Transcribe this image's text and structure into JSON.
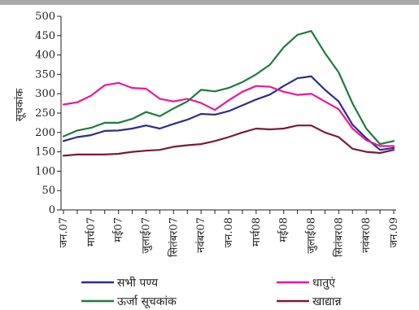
{
  "chart_data": {
    "type": "line",
    "ylabel": "सूचकांक",
    "xlabel": "",
    "ylim": [
      0,
      500
    ],
    "yticks": [
      0,
      50,
      100,
      150,
      200,
      250,
      300,
      350,
      400,
      450,
      500
    ],
    "grid": false,
    "legend_position": "bottom",
    "x_tick_labels": [
      "जन.07",
      "मार्च07",
      "मई07",
      "जुलाई07",
      "सितंबर07",
      "नवंबर07",
      "जन.08",
      "मार्च08",
      "मई08",
      "जुलाई08",
      "सितंबर08",
      "नवंबर08",
      "जन.09"
    ],
    "x_points": 25,
    "series": [
      {
        "name": "सभी पण्य",
        "color": "#2b2e8c",
        "values": [
          178,
          188,
          193,
          204,
          205,
          210,
          218,
          210,
          222,
          233,
          248,
          246,
          255,
          270,
          285,
          298,
          320,
          340,
          345,
          310,
          280,
          220,
          185,
          155,
          160
        ]
      },
      {
        "name": "धातुएं",
        "color": "#e8189a",
        "values": [
          272,
          278,
          295,
          322,
          328,
          315,
          313,
          287,
          280,
          287,
          276,
          258,
          283,
          305,
          320,
          318,
          305,
          297,
          300,
          280,
          260,
          210,
          180,
          165,
          165
        ]
      },
      {
        "name": "ऊर्जा सूचकांक",
        "color": "#1f7a3c",
        "values": [
          190,
          205,
          212,
          225,
          225,
          235,
          253,
          242,
          262,
          280,
          310,
          306,
          315,
          330,
          350,
          375,
          420,
          452,
          462,
          405,
          355,
          275,
          210,
          170,
          178
        ]
      },
      {
        "name": "खाद्यान्न",
        "color": "#7a1a3a",
        "values": [
          140,
          143,
          143,
          143,
          145,
          150,
          153,
          155,
          163,
          167,
          170,
          178,
          188,
          200,
          210,
          208,
          210,
          218,
          218,
          200,
          188,
          158,
          150,
          147,
          155
        ]
      }
    ]
  }
}
